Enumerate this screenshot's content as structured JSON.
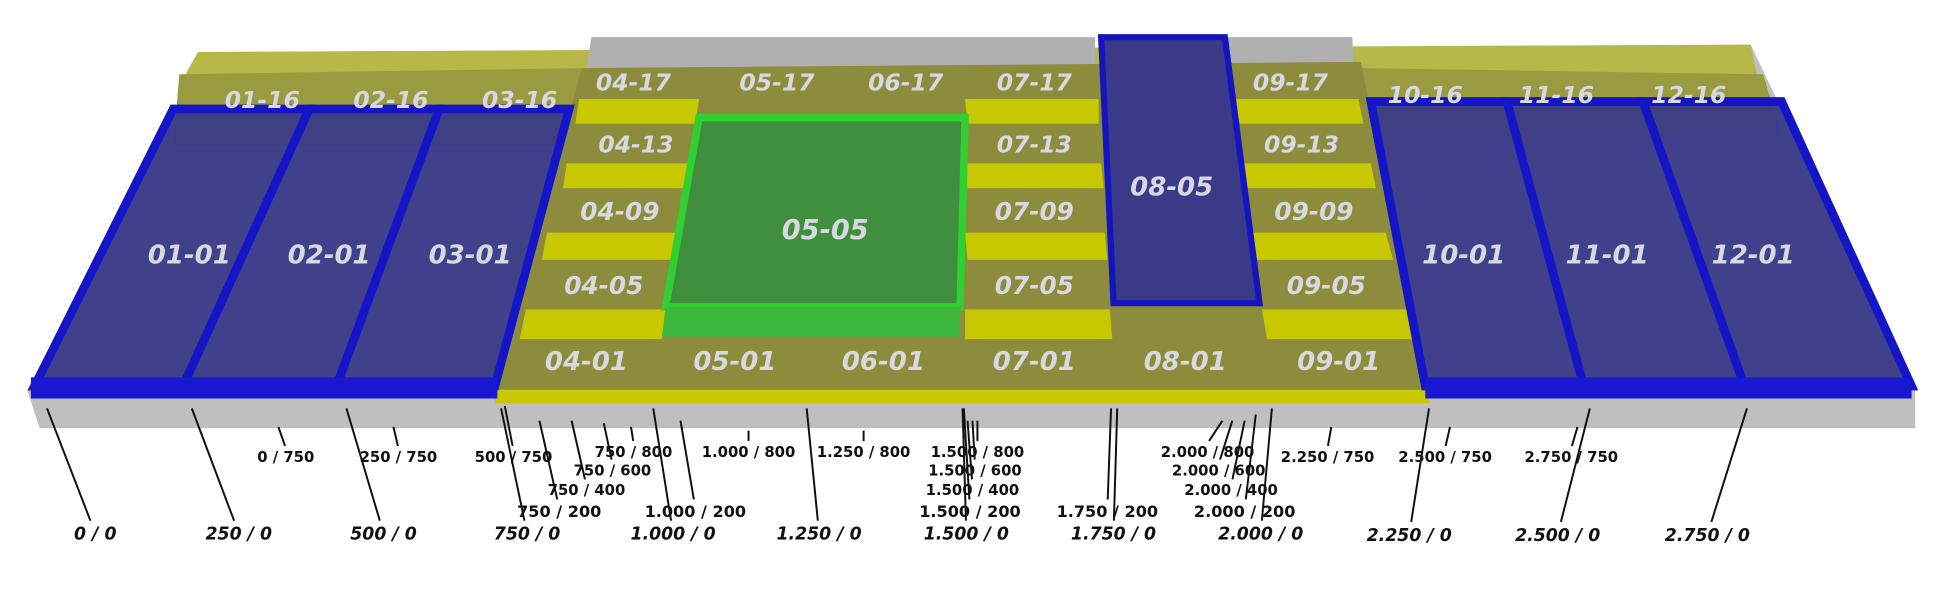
{
  "cells": [
    "01-16",
    "02-16",
    "03-16",
    "04-17",
    "05-17",
    "06-17",
    "07-17",
    "09-17",
    "10-16",
    "11-16",
    "12-16",
    "04-13",
    "07-13",
    "09-13",
    "04-09",
    "07-09",
    "09-09",
    "05-05",
    "08-05",
    "04-05",
    "07-05",
    "09-05",
    "01-01",
    "02-01",
    "03-01",
    "10-01",
    "11-01",
    "12-01",
    "04-01",
    "05-01",
    "06-01",
    "07-01",
    "08-01",
    "09-01"
  ],
  "coordinates": [
    "0 / 750",
    "250 / 750",
    "500 / 750",
    "750 / 800",
    "750 / 600",
    "750 / 400",
    "750 / 200",
    "1.000 / 800",
    "1.000 / 200",
    "1.250 / 800",
    "1.500 / 800",
    "1.500 / 600",
    "1.500 / 400",
    "1.500 / 200",
    "1.750 / 200",
    "2.000 / 800",
    "2.000 / 600",
    "2.000 / 400",
    "2.000 / 200",
    "2.250 / 750",
    "2.500 / 750",
    "2.750 / 750",
    "0 / 0",
    "250 / 0",
    "500 / 0",
    "750 / 0",
    "1.000 / 0",
    "1.250 / 0",
    "1.500 / 0",
    "1.750 / 0",
    "2.000 / 0",
    "2.250 / 0",
    "2.500 / 0",
    "2.750 / 0"
  ]
}
